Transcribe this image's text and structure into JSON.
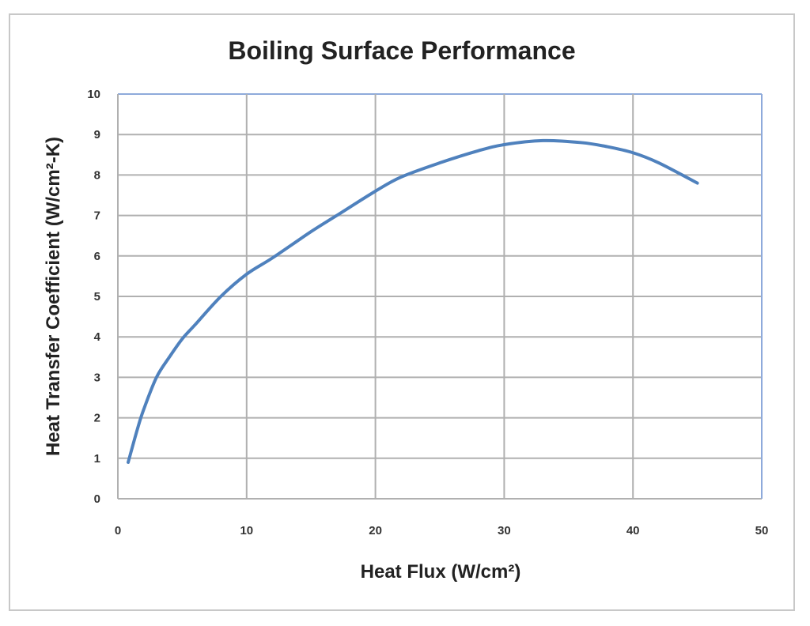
{
  "chart_data": {
    "type": "line",
    "title": "Boiling Surface Performance",
    "xlabel": "Heat Flux (W/cm²)",
    "ylabel": "Heat Transfer Coefficient (W/cm²-K)",
    "xlim": [
      0,
      50
    ],
    "ylim": [
      0,
      10
    ],
    "xticks": [
      "0",
      "10",
      "20",
      "30",
      "40",
      "50"
    ],
    "yticks": [
      "0",
      "1",
      "2",
      "3",
      "4",
      "5",
      "6",
      "7",
      "8",
      "9",
      "10"
    ],
    "grid": true,
    "legend": "none",
    "series_color": "#4f81bd",
    "series": [
      {
        "x": [
          0.8,
          1.5,
          2,
          3,
          4,
          5,
          6,
          8,
          10,
          12,
          15,
          17,
          20,
          22,
          25,
          28,
          30,
          33,
          36,
          38,
          40,
          42,
          45
        ],
        "y": [
          0.9,
          1.7,
          2.2,
          3.0,
          3.5,
          3.95,
          4.3,
          5.0,
          5.55,
          5.95,
          6.6,
          7.0,
          7.6,
          7.95,
          8.3,
          8.6,
          8.75,
          8.85,
          8.8,
          8.7,
          8.55,
          8.3,
          7.8
        ]
      }
    ]
  }
}
